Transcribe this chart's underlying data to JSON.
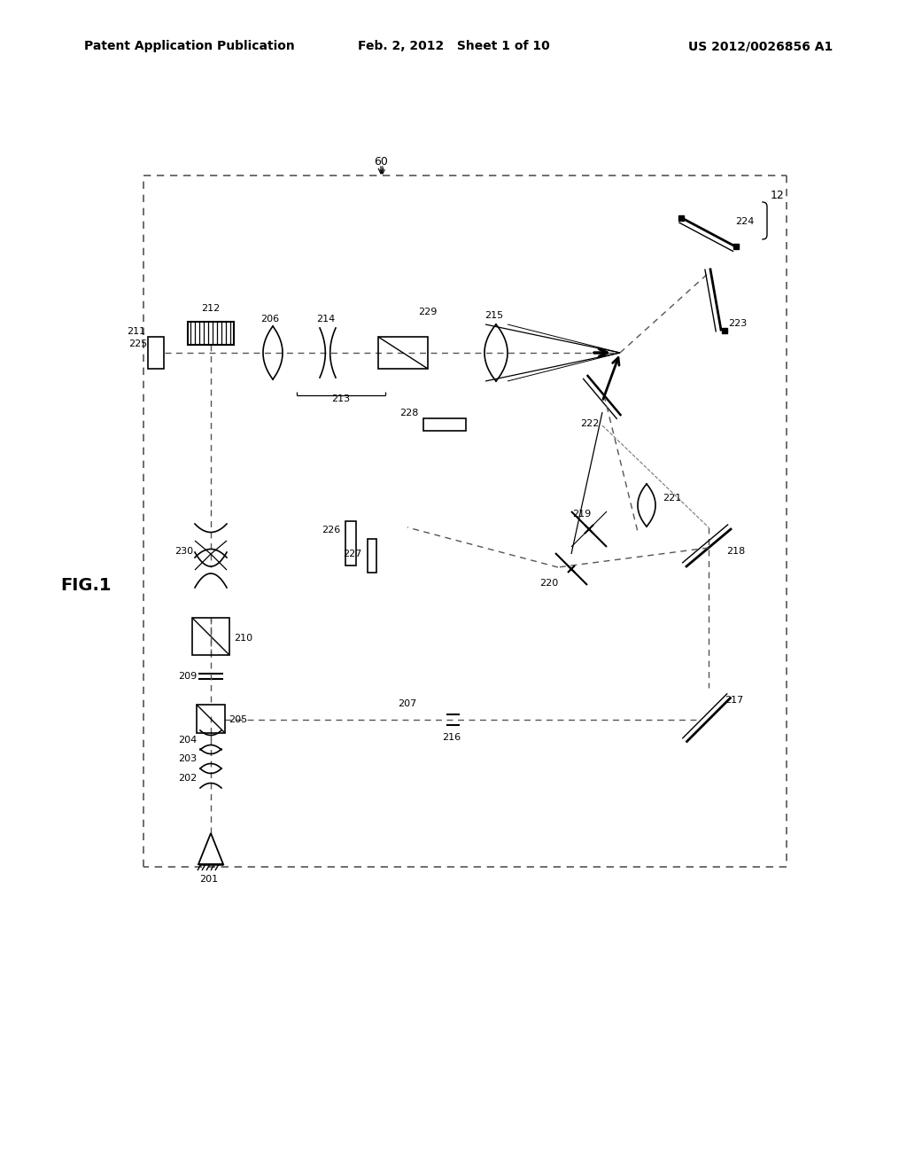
{
  "header_left": "Patent Application Publication",
  "header_center": "Feb. 2, 2012   Sheet 1 of 10",
  "header_right": "US 2012/0026856 A1",
  "fig_label": "FIG.1",
  "bg_color": "#ffffff",
  "line_color": "#000000"
}
